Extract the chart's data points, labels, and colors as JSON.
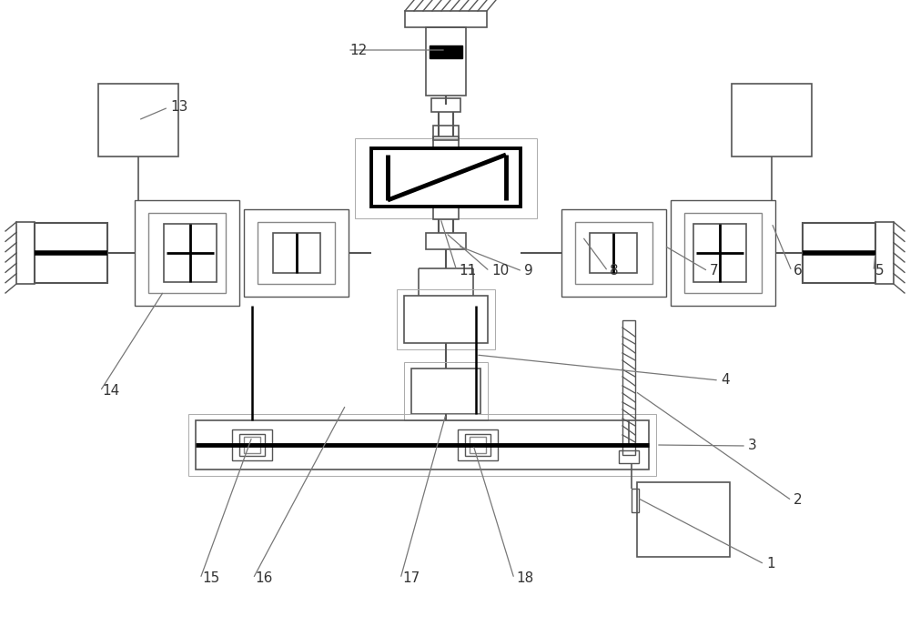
{
  "bg_color": "#ffffff",
  "lc": "#555555",
  "bk": "#000000",
  "fig_w": 10.0,
  "fig_h": 6.88,
  "ann_color": "#777777"
}
